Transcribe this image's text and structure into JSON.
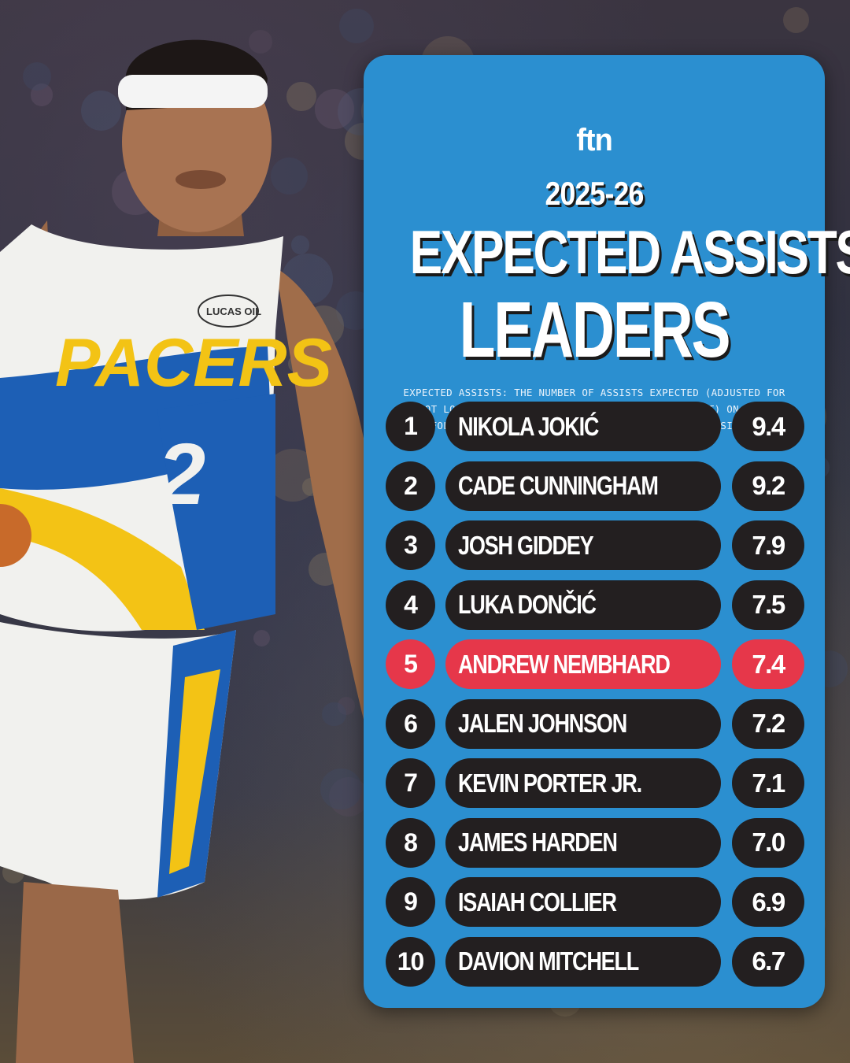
{
  "brand": {
    "logo_text": "ftn"
  },
  "header": {
    "season": "2025-26",
    "title_line1": "EXPECTED ASSISTS",
    "title_line2": "LEADERS",
    "definition": "EXPECTED ASSISTS: THE NUMBER OF ASSISTS EXPECTED (ADJUSTED FOR SHOT LOCATION, SHOT VALUE, AND QUALITY OF CONTEST) ON SHOTS FOLLOWING PASS ATTEMPTS CONSIDERED POTENTIAL ASSISTS."
  },
  "jersey": {
    "team": "PACERS",
    "number": "2",
    "sponsor": "LUCAS OIL"
  },
  "colors": {
    "card": "#2b8fd0",
    "row": "#231f20",
    "highlight": "#e6374a"
  },
  "leaders": [
    {
      "rank": "1",
      "name": "NIKOLA JOKIĆ",
      "value": "9.4",
      "highlight": false
    },
    {
      "rank": "2",
      "name": "CADE CUNNINGHAM",
      "value": "9.2",
      "highlight": false
    },
    {
      "rank": "3",
      "name": "JOSH GIDDEY",
      "value": "7.9",
      "highlight": false
    },
    {
      "rank": "4",
      "name": "LUKA DONČIĆ",
      "value": "7.5",
      "highlight": false
    },
    {
      "rank": "5",
      "name": "ANDREW NEMBHARD",
      "value": "7.4",
      "highlight": true
    },
    {
      "rank": "6",
      "name": "JALEN JOHNSON",
      "value": "7.2",
      "highlight": false
    },
    {
      "rank": "7",
      "name": "KEVIN PORTER JR.",
      "value": "7.1",
      "highlight": false
    },
    {
      "rank": "8",
      "name": "JAMES HARDEN",
      "value": "7.0",
      "highlight": false
    },
    {
      "rank": "9",
      "name": "ISAIAH COLLIER",
      "value": "6.9",
      "highlight": false
    },
    {
      "rank": "10",
      "name": "DAVION MITCHELL",
      "value": "6.7",
      "highlight": false
    }
  ]
}
